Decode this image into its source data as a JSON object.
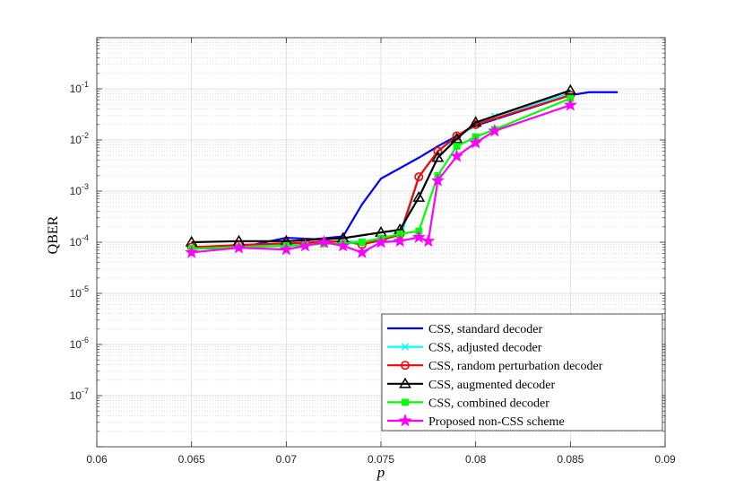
{
  "chart_data": {
    "type": "line",
    "title": "",
    "xlabel": "p",
    "ylabel": "QBER",
    "xlim": [
      0.06,
      0.09
    ],
    "ylim": [
      1e-08,
      1
    ],
    "y_scale": "log",
    "grid": true,
    "legend_position": "bottom-right",
    "x_ticks": [
      "0.06",
      "0.065",
      "0.07",
      "0.075",
      "0.08",
      "0.085",
      "0.09"
    ],
    "x_tick_values": [
      0.06,
      0.065,
      0.07,
      0.075,
      0.08,
      0.085,
      0.09
    ],
    "y_ticks": [
      {
        "base": "10",
        "exp": "-7",
        "value": 1e-07
      },
      {
        "base": "10",
        "exp": "-6",
        "value": 1e-06
      },
      {
        "base": "10",
        "exp": "-5",
        "value": 1e-05
      },
      {
        "base": "10",
        "exp": "-4",
        "value": 0.0001
      },
      {
        "base": "10",
        "exp": "-3",
        "value": 0.001
      },
      {
        "base": "10",
        "exp": "-2",
        "value": 0.01
      },
      {
        "base": "10",
        "exp": "-1",
        "value": 0.1
      }
    ],
    "series": [
      {
        "name": "CSS, standard decoder",
        "color": "#0000ff",
        "marker": "none",
        "x": [
          0.065,
          0.0675,
          0.07,
          0.0715,
          0.073,
          0.074,
          0.075,
          0.076,
          0.077,
          0.078,
          0.079,
          0.08,
          0.085,
          0.086,
          0.0875
        ],
        "y": [
          7.5e-05,
          7.8e-05,
          0.000122,
          0.000115,
          0.00013,
          0.00055,
          0.00175,
          0.0028,
          0.0045,
          0.0075,
          0.012,
          0.019,
          0.075,
          0.086,
          0.086
        ]
      },
      {
        "name": "CSS, adjusted decoder",
        "color": "#00ffff",
        "marker": "x",
        "x": [
          0.065,
          0.0675,
          0.07,
          0.071,
          0.072,
          0.073,
          0.074,
          0.075,
          0.076,
          0.077,
          0.078,
          0.079,
          0.08,
          0.081,
          0.085
        ],
        "y": [
          7.5e-05,
          8.2e-05,
          9e-05,
          9.5e-05,
          0.0001,
          0.000102,
          0.000103,
          0.0001,
          0.00011,
          0.0019,
          0.006,
          0.011,
          0.02,
          0.029,
          0.082
        ]
      },
      {
        "name": "CSS, random perturbation decoder",
        "color": "#ff0000",
        "marker": "circle",
        "x": [
          0.065,
          0.0675,
          0.07,
          0.071,
          0.072,
          0.073,
          0.074,
          0.075,
          0.076,
          0.077,
          0.078,
          0.079,
          0.08,
          0.085
        ],
        "y": [
          8e-05,
          8.8e-05,
          9.5e-05,
          9.8e-05,
          0.000102,
          0.000105,
          9e-05,
          0.00011,
          0.00014,
          0.0019,
          0.006,
          0.012,
          0.02,
          0.075
        ]
      },
      {
        "name": "CSS, augmented decoder",
        "color": "#000000",
        "marker": "triangle",
        "x": [
          0.065,
          0.0675,
          0.07,
          0.073,
          0.075,
          0.076,
          0.077,
          0.078,
          0.079,
          0.08,
          0.085
        ],
        "y": [
          0.0001,
          0.000105,
          0.000105,
          0.00012,
          0.000155,
          0.000175,
          0.00075,
          0.0045,
          0.0105,
          0.022,
          0.093
        ]
      },
      {
        "name": "CSS, combined decoder",
        "color": "#00ff00",
        "marker": "square",
        "x": [
          0.065,
          0.0675,
          0.07,
          0.071,
          0.072,
          0.073,
          0.074,
          0.075,
          0.076,
          0.077,
          0.078,
          0.079,
          0.08,
          0.081,
          0.085
        ],
        "y": [
          7.5e-05,
          8e-05,
          8.5e-05,
          8.8e-05,
          9.3e-05,
          9.5e-05,
          0.0001,
          0.00012,
          0.000145,
          0.000165,
          0.002,
          0.0075,
          0.0115,
          0.016,
          0.065
        ]
      },
      {
        "name": "Proposed non-CSS scheme",
        "color": "#ff00ff",
        "marker": "star",
        "x": [
          0.065,
          0.0675,
          0.07,
          0.071,
          0.072,
          0.073,
          0.074,
          0.075,
          0.076,
          0.077,
          0.0775,
          0.078,
          0.079,
          0.08,
          0.081,
          0.085
        ],
        "y": [
          6.3e-05,
          7.8e-05,
          7.2e-05,
          8.5e-05,
          0.0001,
          8.5e-05,
          6.3e-05,
          0.0001,
          0.000105,
          0.000125,
          0.000105,
          0.0016,
          0.0048,
          0.0088,
          0.015,
          0.048
        ]
      }
    ]
  }
}
